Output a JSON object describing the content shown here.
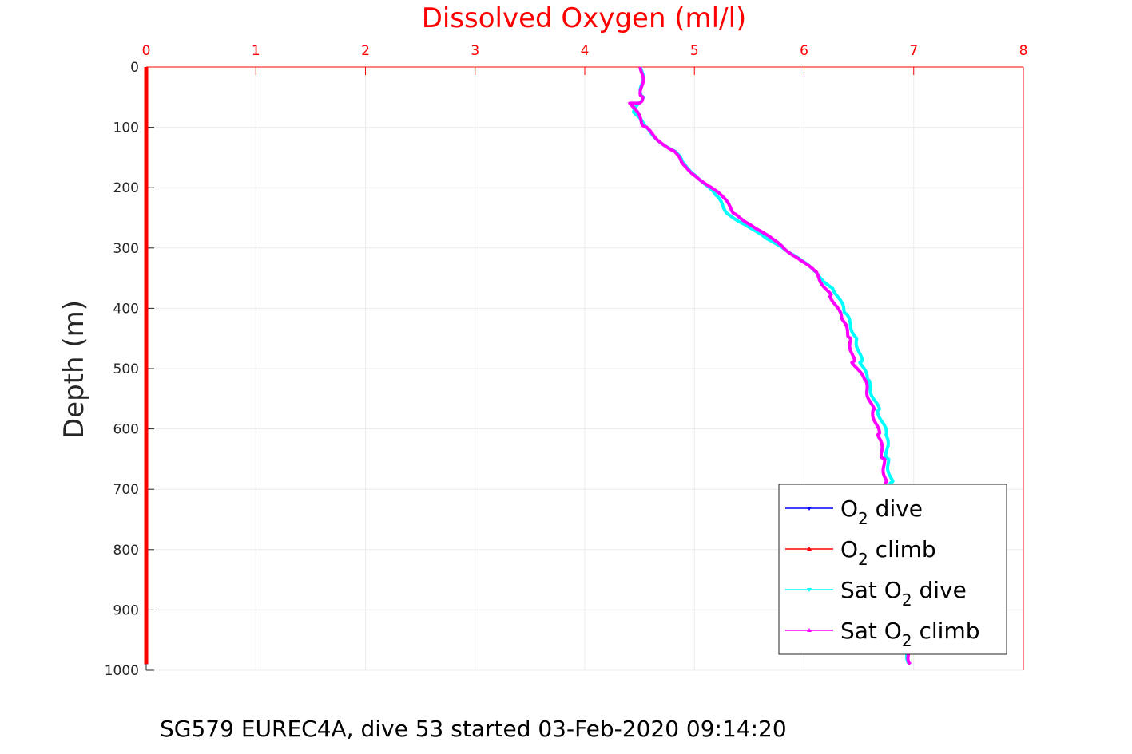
{
  "chart_data": {
    "type": "line",
    "title": "Dissolved Oxygen (ml/l)",
    "xlabel": "Dissolved Oxygen (ml/l)",
    "ylabel": "Depth (m)",
    "xlim": [
      0,
      8
    ],
    "ylim": [
      0,
      1000
    ],
    "y_reversed": true,
    "x_axis_position": "top",
    "grid": true,
    "legend_position": "bottom-right",
    "xticks": [
      "0",
      "1",
      "2",
      "3",
      "4",
      "5",
      "6",
      "7",
      "8"
    ],
    "yticks": [
      "0",
      "100",
      "200",
      "300",
      "400",
      "500",
      "600",
      "700",
      "800",
      "900",
      "1000"
    ],
    "series": [
      {
        "name": "O2 dive",
        "color": "#0000ff",
        "x": [
          0,
          0
        ],
        "y": [
          0,
          990
        ]
      },
      {
        "name": "O2 climb",
        "color": "#ff0000",
        "x": [
          0,
          0
        ],
        "y": [
          0,
          990
        ]
      },
      {
        "name": "Sat O2 dive",
        "color": "#00ffff",
        "x": [
          4.52,
          4.52,
          4.5,
          4.45,
          4.55,
          4.7,
          4.82,
          4.9,
          5.05,
          5.2,
          5.32,
          5.5,
          5.65,
          5.82,
          5.97,
          6.1,
          6.28,
          6.38,
          6.48,
          6.52,
          6.58,
          6.68,
          6.75,
          6.76,
          6.8,
          6.83,
          6.87,
          6.92,
          6.96
        ],
        "y": [
          0,
          50,
          60,
          75,
          100,
          125,
          140,
          160,
          185,
          215,
          245,
          265,
          285,
          300,
          320,
          340,
          370,
          410,
          450,
          490,
          520,
          570,
          610,
          650,
          690,
          760,
          850,
          940,
          990
        ]
      },
      {
        "name": "Sat O2 climb",
        "color": "#ff00ff",
        "x": [
          4.52,
          4.52,
          4.5,
          4.42,
          4.55,
          4.7,
          4.82,
          4.88,
          5.05,
          5.25,
          5.38,
          5.55,
          5.7,
          5.82,
          5.97,
          6.1,
          6.25,
          6.35,
          6.42,
          6.45,
          6.55,
          6.63,
          6.68,
          6.72,
          6.75,
          6.8,
          6.85,
          6.92,
          6.97
        ],
        "y": [
          0,
          50,
          60,
          60,
          100,
          125,
          140,
          160,
          185,
          215,
          245,
          265,
          285,
          300,
          320,
          340,
          380,
          420,
          450,
          490,
          520,
          570,
          610,
          650,
          690,
          760,
          850,
          940,
          990
        ]
      }
    ],
    "legend": [
      {
        "prefix": "O",
        "sub": "2",
        "suffix": " dive",
        "color": "#0000ff",
        "marker": "down"
      },
      {
        "prefix": "O",
        "sub": "2",
        "suffix": " climb",
        "color": "#ff0000",
        "marker": "up"
      },
      {
        "prefix": "Sat O",
        "sub": "2",
        "suffix": " dive",
        "color": "#00ffff",
        "marker": "down"
      },
      {
        "prefix": "Sat O",
        "sub": "2",
        "suffix": " climb",
        "color": "#ff00ff",
        "marker": "up"
      }
    ]
  },
  "caption": "SG579 EUREC4A, dive 53 started 03-Feb-2020 09:14:20"
}
